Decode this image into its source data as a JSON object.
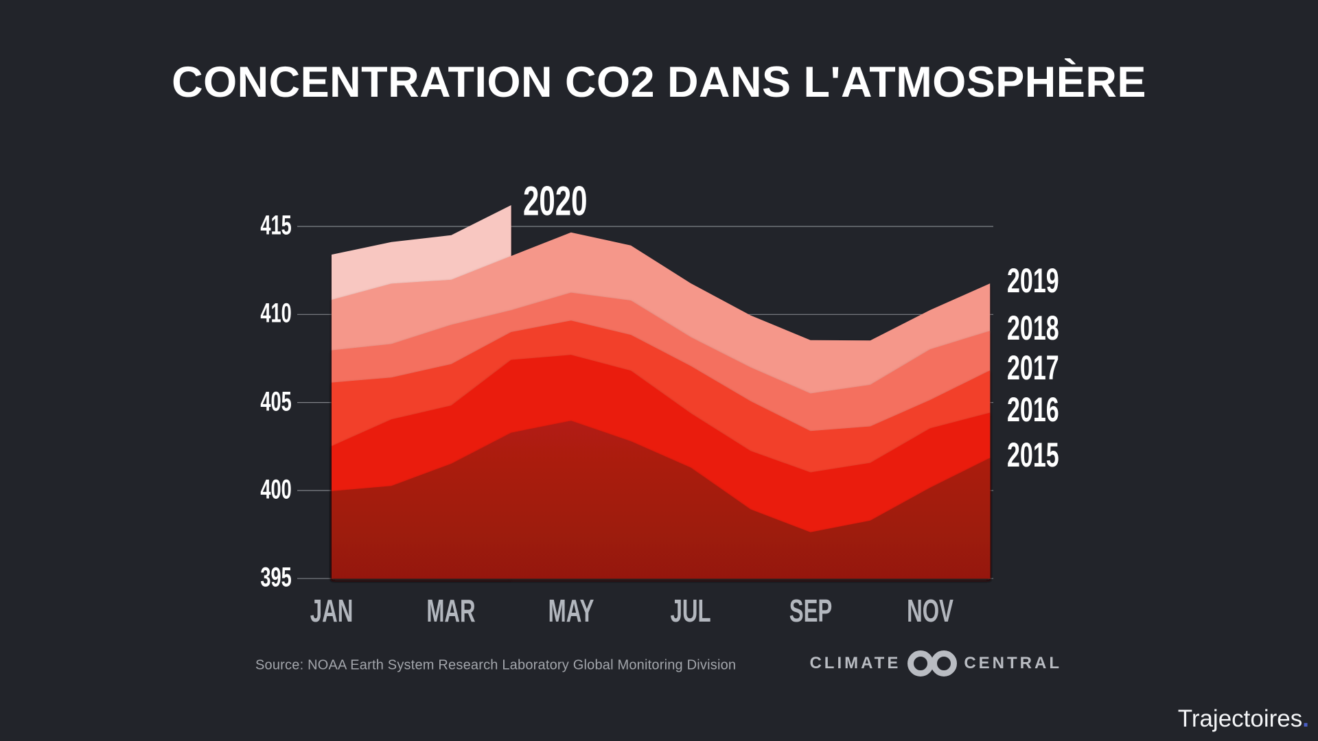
{
  "title": "CONCENTRATION CO2 DANS L'ATMOSPHÈRE",
  "footer": {
    "source": "Source: NOAA Earth System Research Laboratory Global Monitoring Division",
    "brand_left": "CLIMATE",
    "brand_right": "CENTRAL",
    "watermark": "Trajectoires",
    "watermark_dot": "."
  },
  "colors": {
    "background": "#22242a",
    "gridline": "#ced1d7",
    "axis_text": "#ffffff",
    "month_text": "#b3b7be",
    "source_text": "#a3a6ac",
    "brand_text": "#b9bcc2",
    "watermark_text": "#f4f5f7",
    "watermark_dot": "#4a5fc6",
    "shadow": "#2a0c09"
  },
  "chart_data": {
    "type": "area",
    "x_tick_labels": [
      "JAN",
      "MAR",
      "MAY",
      "JUL",
      "SEP",
      "NOV"
    ],
    "x_tick_month_indices": [
      0,
      2,
      4,
      6,
      8,
      10
    ],
    "months_per_series": 12,
    "yticks": [
      415,
      410,
      405,
      400,
      395
    ],
    "ylim": [
      395,
      416.5
    ],
    "grid": true,
    "legend_position": "right",
    "annotation_top_series_label": "2020",
    "series": [
      {
        "name": "2020",
        "color": "#f8c7c1",
        "values": [
          413.4,
          414.11,
          414.5,
          416.21
        ]
      },
      {
        "name": "2019",
        "color": "#f5978a",
        "values": [
          410.83,
          411.75,
          411.97,
          413.32,
          414.66,
          413.92,
          411.77,
          409.95,
          408.54,
          408.52,
          410.25,
          411.76
        ]
      },
      {
        "name": "2018",
        "color": "#f4705f",
        "values": [
          407.96,
          408.32,
          409.41,
          410.24,
          411.24,
          410.79,
          408.71,
          406.99,
          405.51,
          406.0,
          408.02,
          409.07
        ]
      },
      {
        "name": "2017",
        "color": "#f23f2b",
        "values": [
          406.13,
          406.42,
          407.18,
          409.0,
          409.65,
          408.84,
          407.07,
          405.07,
          403.38,
          403.64,
          405.14,
          406.82
        ]
      },
      {
        "name": "2016",
        "color": "#ea1d0e",
        "values": [
          402.52,
          404.04,
          404.83,
          407.42,
          407.7,
          406.81,
          404.39,
          402.25,
          401.03,
          401.57,
          403.53,
          404.42
        ]
      },
      {
        "name": "2015",
        "color": "#b21d12",
        "color_bottom": "#95190e",
        "values": [
          399.96,
          400.26,
          401.52,
          403.28,
          403.96,
          402.8,
          401.3,
          398.93,
          397.63,
          398.29,
          400.16,
          401.85
        ]
      }
    ]
  }
}
